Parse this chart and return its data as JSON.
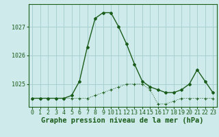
{
  "title": "Graphe pression niveau de la mer (hPa)",
  "background_color": "#ceeaea",
  "grid_color": "#a8d0d0",
  "line_color": "#1a5c1a",
  "x_labels": [
    "0",
    "1",
    "2",
    "3",
    "4",
    "5",
    "6",
    "7",
    "8",
    "9",
    "10",
    "11",
    "12",
    "13",
    "14",
    "15",
    "16",
    "17",
    "18",
    "19",
    "20",
    "21",
    "22",
    "23"
  ],
  "hours": [
    0,
    1,
    2,
    3,
    4,
    5,
    6,
    7,
    8,
    9,
    10,
    11,
    12,
    13,
    14,
    15,
    16,
    17,
    18,
    19,
    20,
    21,
    22,
    23
  ],
  "line1_y": [
    1024.5,
    1024.5,
    1024.5,
    1024.5,
    1024.5,
    1024.6,
    1025.1,
    1026.3,
    1027.3,
    1027.5,
    1027.5,
    1027.0,
    1026.4,
    1025.7,
    1025.1,
    1024.9,
    1024.8,
    1024.7,
    1024.7,
    1024.8,
    1025.0,
    1025.5,
    1025.1,
    1024.7
  ],
  "line2_y": [
    1024.5,
    1024.5,
    1024.5,
    1024.5,
    1024.5,
    1024.5,
    1024.5,
    1024.5,
    1024.6,
    1024.7,
    1024.8,
    1024.9,
    1025.0,
    1025.0,
    1025.0,
    1024.8,
    1024.3,
    1024.3,
    1024.4,
    1024.5,
    1024.5,
    1024.5,
    1024.5,
    1024.5
  ],
  "ylim_min": 1024.2,
  "ylim_max": 1027.8,
  "yticks": [
    1025,
    1026,
    1027
  ],
  "title_fontsize": 7.5,
  "tick_fontsize": 6.0
}
